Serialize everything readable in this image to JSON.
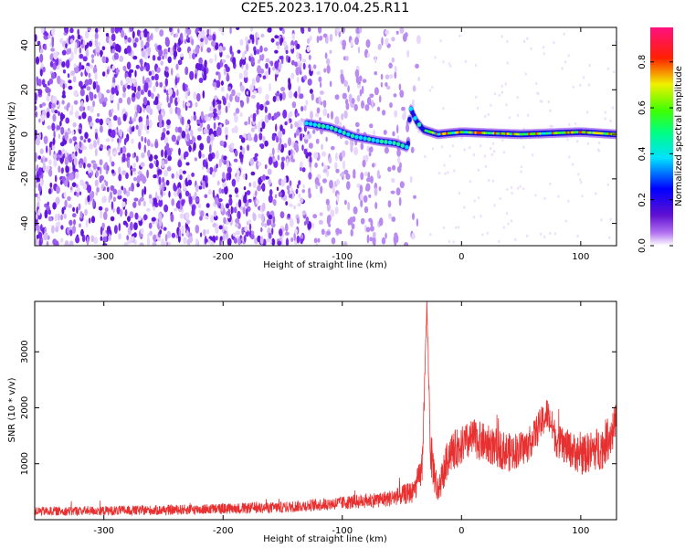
{
  "title": "C2E5.2023.170.04.25.R11",
  "colors": {
    "axis": "#000000",
    "snr_line": "#e83030",
    "spectro_noise": "#7a2cf0",
    "colormap": [
      "#ffffff",
      "#a030f0",
      "#5010d0",
      "#0000ff",
      "#00e0ff",
      "#00e000",
      "#e0e000",
      "#ff0000",
      "#ff1080"
    ]
  },
  "chart_data": [
    {
      "type": "heatmap",
      "name": "spectrogram",
      "xlabel": "Height of straight line (km)",
      "ylabel": "Frequency (Hz)",
      "xlim": [
        -358,
        130
      ],
      "ylim": [
        -50,
        48
      ],
      "xticks": [
        -300,
        -200,
        -100,
        0,
        100
      ],
      "yticks": [
        -40,
        -20,
        0,
        20,
        40
      ],
      "colorbar": {
        "label": "Normalized spectral amplitude",
        "range": [
          0.0,
          0.95
        ],
        "ticks": [
          0.0,
          0.2,
          0.4,
          0.6,
          0.8
        ]
      },
      "features": {
        "noise_region_x": [
          -358,
          -35
        ],
        "signal_track": [
          {
            "x": -130,
            "y": 5
          },
          {
            "x": -110,
            "y": 3
          },
          {
            "x": -90,
            "y": -1
          },
          {
            "x": -70,
            "y": -3
          },
          {
            "x": -55,
            "y": -4
          },
          {
            "x": -45,
            "y": -6
          },
          {
            "x": -43,
            "y": 12
          },
          {
            "x": -38,
            "y": 6
          },
          {
            "x": -32,
            "y": 2
          },
          {
            "x": -20,
            "y": 0
          },
          {
            "x": 0,
            "y": 1
          },
          {
            "x": 50,
            "y": 0
          },
          {
            "x": 100,
            "y": 1
          },
          {
            "x": 130,
            "y": 0
          }
        ]
      }
    },
    {
      "type": "line",
      "name": "snr",
      "xlabel": "Height of straight line (km)",
      "ylabel": "SNR (10 * v/v)",
      "xlim": [
        -358,
        130
      ],
      "ylim": [
        0,
        3900
      ],
      "xticks": [
        -300,
        -200,
        -100,
        0,
        100
      ],
      "yticks": [
        1000,
        2000,
        3000
      ],
      "envelope": [
        {
          "x": -358,
          "mean": 150,
          "amp": 80
        },
        {
          "x": -250,
          "mean": 170,
          "amp": 90
        },
        {
          "x": -150,
          "mean": 220,
          "amp": 100
        },
        {
          "x": -100,
          "mean": 300,
          "amp": 120
        },
        {
          "x": -60,
          "mean": 380,
          "amp": 150
        },
        {
          "x": -40,
          "mean": 500,
          "amp": 200
        },
        {
          "x": -33,
          "mean": 900,
          "amp": 300
        },
        {
          "x": -29,
          "mean": 3850,
          "amp": 80
        },
        {
          "x": -26,
          "mean": 1200,
          "amp": 400
        },
        {
          "x": -20,
          "mean": 500,
          "amp": 300
        },
        {
          "x": -10,
          "mean": 1200,
          "amp": 350
        },
        {
          "x": 10,
          "mean": 1450,
          "amp": 350
        },
        {
          "x": 40,
          "mean": 1200,
          "amp": 350
        },
        {
          "x": 55,
          "mean": 1300,
          "amp": 300
        },
        {
          "x": 72,
          "mean": 1900,
          "amp": 300
        },
        {
          "x": 80,
          "mean": 1400,
          "amp": 300
        },
        {
          "x": 100,
          "mean": 1150,
          "amp": 350
        },
        {
          "x": 118,
          "mean": 1300,
          "amp": 400
        },
        {
          "x": 130,
          "mean": 1700,
          "amp": 400
        }
      ]
    }
  ]
}
